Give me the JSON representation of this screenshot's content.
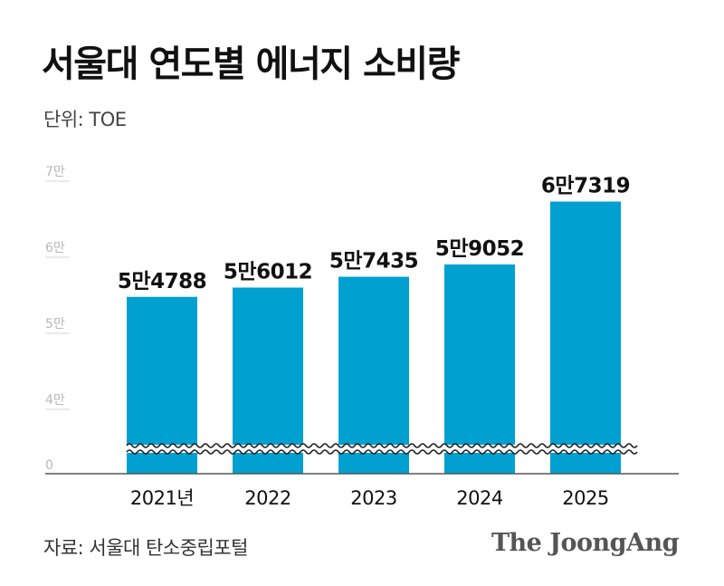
{
  "header": {
    "title": "서울대 연도별 에너지 소비량",
    "unit": "단위: TOE"
  },
  "footer": {
    "source": "자료: 서울대 탄소중립포털",
    "brand": "The JoongAng"
  },
  "colors": {
    "bar": "#00a1d0",
    "gridline": "#d5d5d5",
    "axis": "#555555",
    "tick_label": "#b8b8b8"
  },
  "chart_data": {
    "type": "bar",
    "title": "서울대 연도별 에너지 소비량",
    "ylabel": "단위: TOE",
    "axis_break": true,
    "grid": true,
    "categories": [
      "2021년",
      "2022",
      "2023",
      "2024",
      "2025"
    ],
    "values": [
      54788,
      56012,
      57435,
      59052,
      67319
    ],
    "data_labels": [
      "5만4788",
      "5만6012",
      "5만7435",
      "5만9052",
      "6만7319"
    ],
    "yticks": [
      {
        "value": 0,
        "label": "0"
      },
      {
        "value": 40000,
        "label": "4만"
      },
      {
        "value": 50000,
        "label": "5만"
      },
      {
        "value": 60000,
        "label": "6만"
      },
      {
        "value": 70000,
        "label": "7만"
      }
    ]
  }
}
